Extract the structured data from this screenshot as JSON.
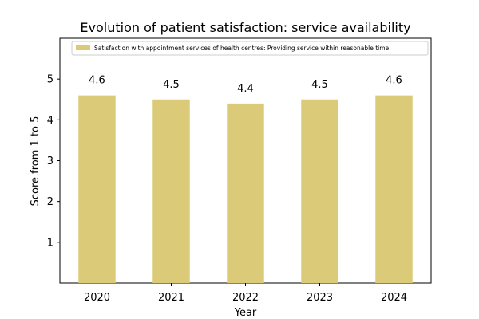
{
  "chart_data": {
    "type": "bar",
    "title": "Evolution of patient satisfaction: service availability",
    "xlabel": "Year",
    "ylabel": "Score from 1 to 5",
    "categories": [
      "2020",
      "2021",
      "2022",
      "2023",
      "2024"
    ],
    "series": [
      {
        "name": "Satisfaction with appointment services of health centres: Providing service within reasonable time",
        "values": [
          4.6,
          4.5,
          4.4,
          4.5,
          4.6
        ],
        "data_labels": [
          "4.6",
          "4.5",
          "4.4",
          "4.5",
          "4.6"
        ],
        "color": "#dbcb78"
      }
    ],
    "ylim": [
      0,
      6
    ],
    "yticks": [
      "1",
      "2",
      "3",
      "4",
      "5"
    ],
    "grid": false,
    "legend_position": "top-right"
  }
}
